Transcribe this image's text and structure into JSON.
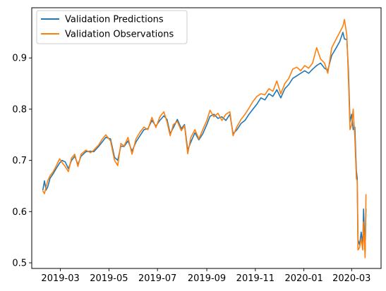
{
  "chart_data": {
    "type": "line",
    "title": "",
    "xlabel": "",
    "ylabel": "",
    "grid": false,
    "legend_position": "upper-left",
    "xlim": [
      "2019-01-24",
      "2020-04-07"
    ],
    "ylim": [
      0.489,
      0.998
    ],
    "x_ticks": [
      {
        "date": "2019-03-01",
        "label": "2019-03"
      },
      {
        "date": "2019-05-01",
        "label": "2019-05"
      },
      {
        "date": "2019-07-01",
        "label": "2019-07"
      },
      {
        "date": "2019-09-01",
        "label": "2019-09"
      },
      {
        "date": "2019-11-01",
        "label": "2019-11"
      },
      {
        "date": "2020-01-01",
        "label": "2020-01"
      },
      {
        "date": "2020-03-01",
        "label": "2020-03"
      }
    ],
    "y_ticks": [
      {
        "value": 0.5,
        "label": "0.5"
      },
      {
        "value": 0.6,
        "label": "0.6"
      },
      {
        "value": 0.7,
        "label": "0.7"
      },
      {
        "value": 0.8,
        "label": "0.8"
      },
      {
        "value": 0.9,
        "label": "0.9"
      }
    ],
    "series": [
      {
        "name": "Validation Predictions",
        "color": "#1f77b4",
        "points": [
          [
            "2019-02-07",
            0.643
          ],
          [
            "2019-02-09",
            0.66
          ],
          [
            "2019-02-11",
            0.642
          ],
          [
            "2019-02-13",
            0.648
          ],
          [
            "2019-02-16",
            0.665
          ],
          [
            "2019-02-20",
            0.674
          ],
          [
            "2019-02-24",
            0.685
          ],
          [
            "2019-02-28",
            0.695
          ],
          [
            "2019-03-03",
            0.7
          ],
          [
            "2019-03-07",
            0.697
          ],
          [
            "2019-03-11",
            0.684
          ],
          [
            "2019-03-15",
            0.7
          ],
          [
            "2019-03-19",
            0.708
          ],
          [
            "2019-03-23",
            0.692
          ],
          [
            "2019-03-27",
            0.708
          ],
          [
            "2019-04-02",
            0.717
          ],
          [
            "2019-04-08",
            0.718
          ],
          [
            "2019-04-12",
            0.717
          ],
          [
            "2019-04-18",
            0.727
          ],
          [
            "2019-04-22",
            0.735
          ],
          [
            "2019-04-27",
            0.745
          ],
          [
            "2019-05-03",
            0.742
          ],
          [
            "2019-05-08",
            0.706
          ],
          [
            "2019-05-12",
            0.7
          ],
          [
            "2019-05-16",
            0.728
          ],
          [
            "2019-05-20",
            0.727
          ],
          [
            "2019-05-25",
            0.738
          ],
          [
            "2019-05-30",
            0.718
          ],
          [
            "2019-06-04",
            0.736
          ],
          [
            "2019-06-09",
            0.748
          ],
          [
            "2019-06-14",
            0.76
          ],
          [
            "2019-06-19",
            0.762
          ],
          [
            "2019-06-24",
            0.778
          ],
          [
            "2019-06-29",
            0.767
          ],
          [
            "2019-07-04",
            0.778
          ],
          [
            "2019-07-09",
            0.787
          ],
          [
            "2019-07-13",
            0.78
          ],
          [
            "2019-07-17",
            0.752
          ],
          [
            "2019-07-21",
            0.764
          ],
          [
            "2019-07-26",
            0.78
          ],
          [
            "2019-07-31",
            0.762
          ],
          [
            "2019-08-04",
            0.77
          ],
          [
            "2019-08-08",
            0.72
          ],
          [
            "2019-08-12",
            0.736
          ],
          [
            "2019-08-17",
            0.754
          ],
          [
            "2019-08-22",
            0.74
          ],
          [
            "2019-08-27",
            0.752
          ],
          [
            "2019-09-01",
            0.77
          ],
          [
            "2019-09-05",
            0.786
          ],
          [
            "2019-09-10",
            0.79
          ],
          [
            "2019-09-15",
            0.782
          ],
          [
            "2019-09-20",
            0.785
          ],
          [
            "2019-09-25",
            0.778
          ],
          [
            "2019-09-30",
            0.79
          ],
          [
            "2019-10-04",
            0.752
          ],
          [
            "2019-10-09",
            0.76
          ],
          [
            "2019-10-14",
            0.772
          ],
          [
            "2019-10-19",
            0.778
          ],
          [
            "2019-10-24",
            0.79
          ],
          [
            "2019-10-29",
            0.8
          ],
          [
            "2019-11-03",
            0.81
          ],
          [
            "2019-11-08",
            0.822
          ],
          [
            "2019-11-13",
            0.818
          ],
          [
            "2019-11-18",
            0.83
          ],
          [
            "2019-11-23",
            0.825
          ],
          [
            "2019-11-28",
            0.838
          ],
          [
            "2019-12-03",
            0.822
          ],
          [
            "2019-12-08",
            0.84
          ],
          [
            "2019-12-13",
            0.848
          ],
          [
            "2019-12-18",
            0.86
          ],
          [
            "2019-12-23",
            0.865
          ],
          [
            "2019-12-28",
            0.87
          ],
          [
            "2020-01-02",
            0.875
          ],
          [
            "2020-01-07",
            0.87
          ],
          [
            "2020-01-12",
            0.878
          ],
          [
            "2020-01-17",
            0.885
          ],
          [
            "2020-01-22",
            0.89
          ],
          [
            "2020-01-27",
            0.88
          ],
          [
            "2020-01-31",
            0.876
          ],
          [
            "2020-02-05",
            0.905
          ],
          [
            "2020-02-10",
            0.918
          ],
          [
            "2020-02-15",
            0.932
          ],
          [
            "2020-02-19",
            0.95
          ],
          [
            "2020-02-21",
            0.937
          ],
          [
            "2020-02-24",
            0.936
          ],
          [
            "2020-02-26",
            0.875
          ],
          [
            "2020-02-28",
            0.775
          ],
          [
            "2020-03-01",
            0.79
          ],
          [
            "2020-03-03",
            0.76
          ],
          [
            "2020-03-05",
            0.765
          ],
          [
            "2020-03-07",
            0.68
          ],
          [
            "2020-03-08",
            0.665
          ],
          [
            "2020-03-09",
            0.545
          ],
          [
            "2020-03-11",
            0.535
          ],
          [
            "2020-03-13",
            0.56
          ],
          [
            "2020-03-15",
            0.535
          ],
          [
            "2020-03-16",
            0.605
          ],
          [
            "2020-03-18",
            0.52
          ],
          [
            "2020-03-19",
            0.605
          ]
        ]
      },
      {
        "name": "Validation Observations",
        "color": "#ff7f0e",
        "points": [
          [
            "2019-02-07",
            0.64
          ],
          [
            "2019-02-09",
            0.635
          ],
          [
            "2019-02-11",
            0.648
          ],
          [
            "2019-02-13",
            0.66
          ],
          [
            "2019-02-16",
            0.67
          ],
          [
            "2019-02-20",
            0.678
          ],
          [
            "2019-02-24",
            0.69
          ],
          [
            "2019-02-28",
            0.703
          ],
          [
            "2019-03-03",
            0.696
          ],
          [
            "2019-03-07",
            0.688
          ],
          [
            "2019-03-11",
            0.678
          ],
          [
            "2019-03-15",
            0.705
          ],
          [
            "2019-03-19",
            0.712
          ],
          [
            "2019-03-23",
            0.688
          ],
          [
            "2019-03-27",
            0.712
          ],
          [
            "2019-04-02",
            0.72
          ],
          [
            "2019-04-08",
            0.715
          ],
          [
            "2019-04-12",
            0.72
          ],
          [
            "2019-04-18",
            0.73
          ],
          [
            "2019-04-22",
            0.74
          ],
          [
            "2019-04-27",
            0.75
          ],
          [
            "2019-05-03",
            0.738
          ],
          [
            "2019-05-08",
            0.7
          ],
          [
            "2019-05-12",
            0.69
          ],
          [
            "2019-05-16",
            0.733
          ],
          [
            "2019-05-20",
            0.728
          ],
          [
            "2019-05-25",
            0.745
          ],
          [
            "2019-05-30",
            0.712
          ],
          [
            "2019-06-04",
            0.742
          ],
          [
            "2019-06-09",
            0.755
          ],
          [
            "2019-06-14",
            0.765
          ],
          [
            "2019-06-19",
            0.76
          ],
          [
            "2019-06-24",
            0.784
          ],
          [
            "2019-06-29",
            0.764
          ],
          [
            "2019-07-04",
            0.785
          ],
          [
            "2019-07-09",
            0.795
          ],
          [
            "2019-07-13",
            0.775
          ],
          [
            "2019-07-17",
            0.748
          ],
          [
            "2019-07-21",
            0.77
          ],
          [
            "2019-07-26",
            0.776
          ],
          [
            "2019-07-31",
            0.758
          ],
          [
            "2019-08-04",
            0.768
          ],
          [
            "2019-08-08",
            0.713
          ],
          [
            "2019-08-12",
            0.745
          ],
          [
            "2019-08-17",
            0.76
          ],
          [
            "2019-08-22",
            0.742
          ],
          [
            "2019-08-27",
            0.76
          ],
          [
            "2019-09-01",
            0.778
          ],
          [
            "2019-09-05",
            0.798
          ],
          [
            "2019-09-10",
            0.785
          ],
          [
            "2019-09-15",
            0.792
          ],
          [
            "2019-09-20",
            0.778
          ],
          [
            "2019-09-25",
            0.79
          ],
          [
            "2019-09-30",
            0.795
          ],
          [
            "2019-10-04",
            0.748
          ],
          [
            "2019-10-09",
            0.766
          ],
          [
            "2019-10-14",
            0.78
          ],
          [
            "2019-10-19",
            0.79
          ],
          [
            "2019-10-24",
            0.802
          ],
          [
            "2019-10-29",
            0.815
          ],
          [
            "2019-11-03",
            0.825
          ],
          [
            "2019-11-08",
            0.83
          ],
          [
            "2019-11-13",
            0.828
          ],
          [
            "2019-11-18",
            0.84
          ],
          [
            "2019-11-23",
            0.835
          ],
          [
            "2019-11-28",
            0.855
          ],
          [
            "2019-12-03",
            0.83
          ],
          [
            "2019-12-08",
            0.85
          ],
          [
            "2019-12-13",
            0.86
          ],
          [
            "2019-12-18",
            0.878
          ],
          [
            "2019-12-23",
            0.882
          ],
          [
            "2019-12-28",
            0.875
          ],
          [
            "2020-01-02",
            0.885
          ],
          [
            "2020-01-07",
            0.88
          ],
          [
            "2020-01-12",
            0.89
          ],
          [
            "2020-01-17",
            0.92
          ],
          [
            "2020-01-22",
            0.898
          ],
          [
            "2020-01-27",
            0.89
          ],
          [
            "2020-01-31",
            0.87
          ],
          [
            "2020-02-05",
            0.92
          ],
          [
            "2020-02-10",
            0.935
          ],
          [
            "2020-02-15",
            0.95
          ],
          [
            "2020-02-19",
            0.962
          ],
          [
            "2020-02-21",
            0.975
          ],
          [
            "2020-02-24",
            0.945
          ],
          [
            "2020-02-26",
            0.858
          ],
          [
            "2020-02-28",
            0.76
          ],
          [
            "2020-03-01",
            0.77
          ],
          [
            "2020-03-03",
            0.8
          ],
          [
            "2020-03-05",
            0.745
          ],
          [
            "2020-03-07",
            0.665
          ],
          [
            "2020-03-08",
            0.66
          ],
          [
            "2020-03-09",
            0.525
          ],
          [
            "2020-03-11",
            0.53
          ],
          [
            "2020-03-13",
            0.548
          ],
          [
            "2020-03-15",
            0.525
          ],
          [
            "2020-03-16",
            0.58
          ],
          [
            "2020-03-18",
            0.51
          ],
          [
            "2020-03-19",
            0.633
          ]
        ]
      }
    ]
  }
}
